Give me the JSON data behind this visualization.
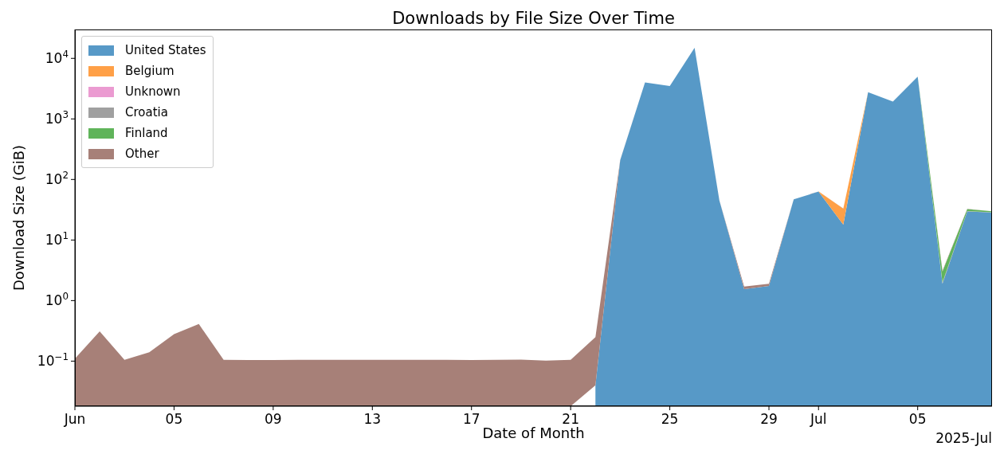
{
  "chart_data": {
    "type": "area",
    "title": "Downloads by File Size Over Time",
    "xlabel": "Date of Month",
    "ylabel": "Download Size (GiB)",
    "x": [
      "2025-06-01",
      "2025-06-02",
      "2025-06-03",
      "2025-06-04",
      "2025-06-05",
      "2025-06-06",
      "2025-06-07",
      "2025-06-08",
      "2025-06-09",
      "2025-06-10",
      "2025-06-11",
      "2025-06-12",
      "2025-06-13",
      "2025-06-14",
      "2025-06-15",
      "2025-06-16",
      "2025-06-17",
      "2025-06-18",
      "2025-06-19",
      "2025-06-20",
      "2025-06-21",
      "2025-06-22",
      "2025-06-23",
      "2025-06-24",
      "2025-06-25",
      "2025-06-26",
      "2025-06-27",
      "2025-06-28",
      "2025-06-29",
      "2025-06-30",
      "2025-07-01",
      "2025-07-02",
      "2025-07-03",
      "2025-07-04",
      "2025-07-05",
      "2025-07-06",
      "2025-07-07",
      "2025-07-08"
    ],
    "series": [
      {
        "name": "United States",
        "color": "#5799c7",
        "values": [
          null,
          null,
          null,
          null,
          null,
          null,
          null,
          null,
          null,
          null,
          null,
          null,
          null,
          null,
          null,
          null,
          null,
          null,
          null,
          null,
          null,
          0.04,
          209,
          4000,
          3500,
          15000,
          45,
          1.55,
          1.75,
          47,
          63,
          18,
          2770,
          1940,
          5000,
          1.9,
          29.5,
          28.5
        ]
      },
      {
        "name": "Belgium",
        "color": "#ffa047",
        "values": [
          null,
          null,
          null,
          null,
          null,
          null,
          null,
          null,
          null,
          null,
          null,
          null,
          null,
          null,
          null,
          null,
          null,
          null,
          null,
          null,
          null,
          null,
          null,
          null,
          null,
          null,
          null,
          null,
          null,
          null,
          0.5,
          15,
          1,
          null,
          null,
          null,
          null,
          null
        ]
      },
      {
        "name": "Unknown",
        "color": "#eb9bd1",
        "values": [
          null,
          null,
          null,
          null,
          null,
          null,
          null,
          null,
          null,
          null,
          null,
          null,
          null,
          null,
          null,
          null,
          null,
          null,
          null,
          null,
          null,
          null,
          null,
          null,
          null,
          null,
          null,
          null,
          null,
          null,
          null,
          null,
          null,
          null,
          null,
          null,
          null,
          null
        ]
      },
      {
        "name": "Croatia",
        "color": "#a0a0a0",
        "values": [
          null,
          null,
          null,
          null,
          null,
          null,
          null,
          null,
          null,
          null,
          null,
          null,
          null,
          null,
          null,
          null,
          null,
          null,
          null,
          null,
          null,
          null,
          null,
          null,
          null,
          null,
          null,
          null,
          null,
          null,
          null,
          null,
          null,
          null,
          null,
          0.1,
          0.5,
          0.3
        ]
      },
      {
        "name": "Finland",
        "color": "#60b45a",
        "values": [
          null,
          null,
          null,
          null,
          null,
          null,
          null,
          null,
          null,
          null,
          null,
          null,
          null,
          null,
          null,
          null,
          null,
          null,
          null,
          null,
          null,
          null,
          null,
          null,
          null,
          null,
          null,
          null,
          null,
          null,
          null,
          null,
          null,
          null,
          5,
          1,
          2.5,
          1
        ]
      },
      {
        "name": "Other",
        "color": "#a78078",
        "values": [
          0.11,
          0.31,
          0.105,
          0.14,
          0.28,
          0.41,
          0.105,
          0.104,
          0.104,
          0.105,
          0.105,
          0.105,
          0.105,
          0.105,
          0.105,
          0.105,
          0.104,
          0.105,
          0.106,
          0.102,
          0.105,
          0.21,
          2,
          1,
          1,
          1,
          0.2,
          0.15,
          0.15,
          0.1,
          0.1,
          0.1,
          0.1,
          0.1,
          0.1,
          0.1,
          0.1,
          0.1
        ]
      }
    ],
    "stacked": true,
    "log": "y",
    "xlim": [
      "2025-06-01",
      "2025-07-08"
    ],
    "xticks": [
      {
        "value": "2025-06-01",
        "label": "Jun"
      },
      {
        "value": "2025-06-05",
        "label": "05"
      },
      {
        "value": "2025-06-09",
        "label": "09"
      },
      {
        "value": "2025-06-13",
        "label": "13"
      },
      {
        "value": "2025-06-17",
        "label": "17"
      },
      {
        "value": "2025-06-21",
        "label": "21"
      },
      {
        "value": "2025-06-25",
        "label": "25"
      },
      {
        "value": "2025-06-29",
        "label": "29"
      },
      {
        "value": "2025-07-01",
        "label": "Jul"
      },
      {
        "value": "2025-07-05",
        "label": "05"
      }
    ],
    "ylim": [
      0.018,
      30000
    ],
    "yticks": [
      {
        "value": 0.1,
        "label": "10$^{−1}$"
      },
      {
        "value": 1,
        "label": "10$^{0}$"
      },
      {
        "value": 10,
        "label": "10$^{1}$"
      },
      {
        "value": 100,
        "label": "10$^{2}$"
      },
      {
        "value": 1000,
        "label": "10$^{3}$"
      },
      {
        "value": 10000,
        "label": "10$^{4}$"
      }
    ],
    "legend": "top left",
    "annotations": [
      "2025-Jul"
    ]
  }
}
